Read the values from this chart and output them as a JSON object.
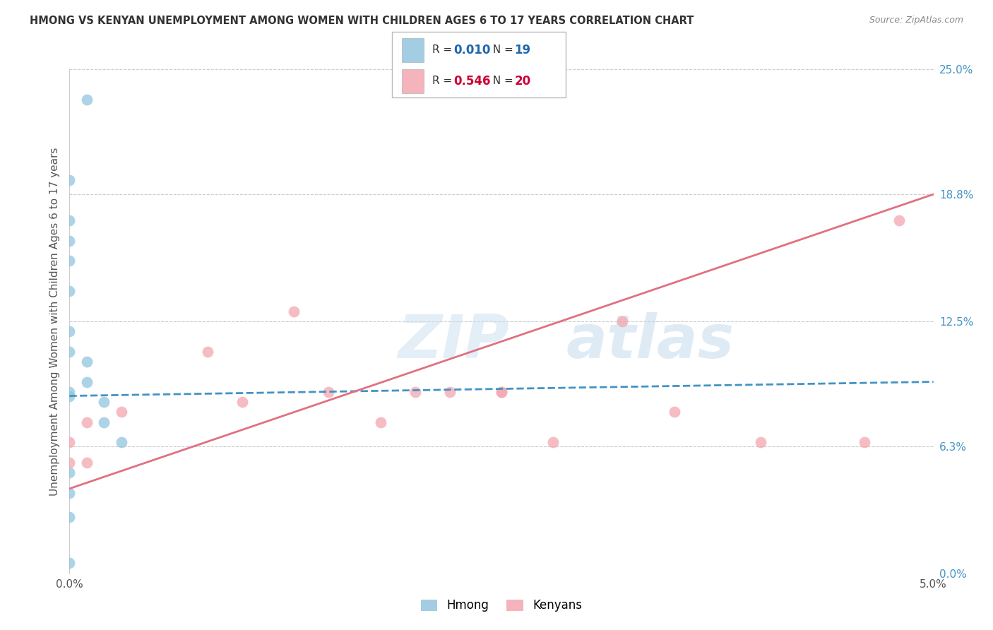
{
  "title": "HMONG VS KENYAN UNEMPLOYMENT AMONG WOMEN WITH CHILDREN AGES 6 TO 17 YEARS CORRELATION CHART",
  "source": "Source: ZipAtlas.com",
  "ylabel": "Unemployment Among Women with Children Ages 6 to 17 years",
  "watermark_zip": "ZIP",
  "watermark_atlas": "atlas",
  "xlim": [
    0.0,
    0.05
  ],
  "ylim": [
    0.0,
    0.25
  ],
  "x_ticks": [
    0.0,
    0.01,
    0.02,
    0.03,
    0.04,
    0.05
  ],
  "x_tick_labels": [
    "0.0%",
    "",
    "",
    "",
    "",
    "5.0%"
  ],
  "y_tick_labels_right": [
    "0.0%",
    "6.3%",
    "12.5%",
    "18.8%",
    "25.0%"
  ],
  "y_ticks_right": [
    0.0,
    0.063,
    0.125,
    0.188,
    0.25
  ],
  "hmong_R": "0.010",
  "hmong_N": "19",
  "kenyan_R": "0.546",
  "kenyan_N": "20",
  "hmong_color": "#92c5de",
  "kenyan_color": "#f4a6b0",
  "hmong_line_color": "#4393c3",
  "kenyan_line_color": "#e07080",
  "hmong_scatter_x": [
    0.001,
    0.0,
    0.0,
    0.0,
    0.0,
    0.0,
    0.0,
    0.0,
    0.0,
    0.0,
    0.001,
    0.001,
    0.002,
    0.002,
    0.003,
    0.0,
    0.0,
    0.0,
    0.0
  ],
  "hmong_scatter_y": [
    0.235,
    0.195,
    0.175,
    0.165,
    0.155,
    0.14,
    0.12,
    0.11,
    0.09,
    0.088,
    0.105,
    0.095,
    0.085,
    0.075,
    0.065,
    0.05,
    0.04,
    0.028,
    0.005
  ],
  "kenyan_scatter_x": [
    0.0,
    0.0,
    0.001,
    0.001,
    0.003,
    0.008,
    0.01,
    0.013,
    0.015,
    0.018,
    0.02,
    0.022,
    0.025,
    0.025,
    0.028,
    0.032,
    0.035,
    0.04,
    0.046,
    0.048
  ],
  "kenyan_scatter_y": [
    0.065,
    0.055,
    0.075,
    0.055,
    0.08,
    0.11,
    0.085,
    0.13,
    0.09,
    0.075,
    0.09,
    0.09,
    0.09,
    0.09,
    0.065,
    0.125,
    0.08,
    0.065,
    0.065,
    0.175
  ],
  "hmong_line_x": [
    0.0,
    0.05
  ],
  "hmong_line_y": [
    0.088,
    0.095
  ],
  "kenyan_line_x": [
    0.0,
    0.05
  ],
  "kenyan_line_y": [
    0.042,
    0.188
  ],
  "bottom_legend_labels": [
    "Hmong",
    "Kenyans"
  ]
}
